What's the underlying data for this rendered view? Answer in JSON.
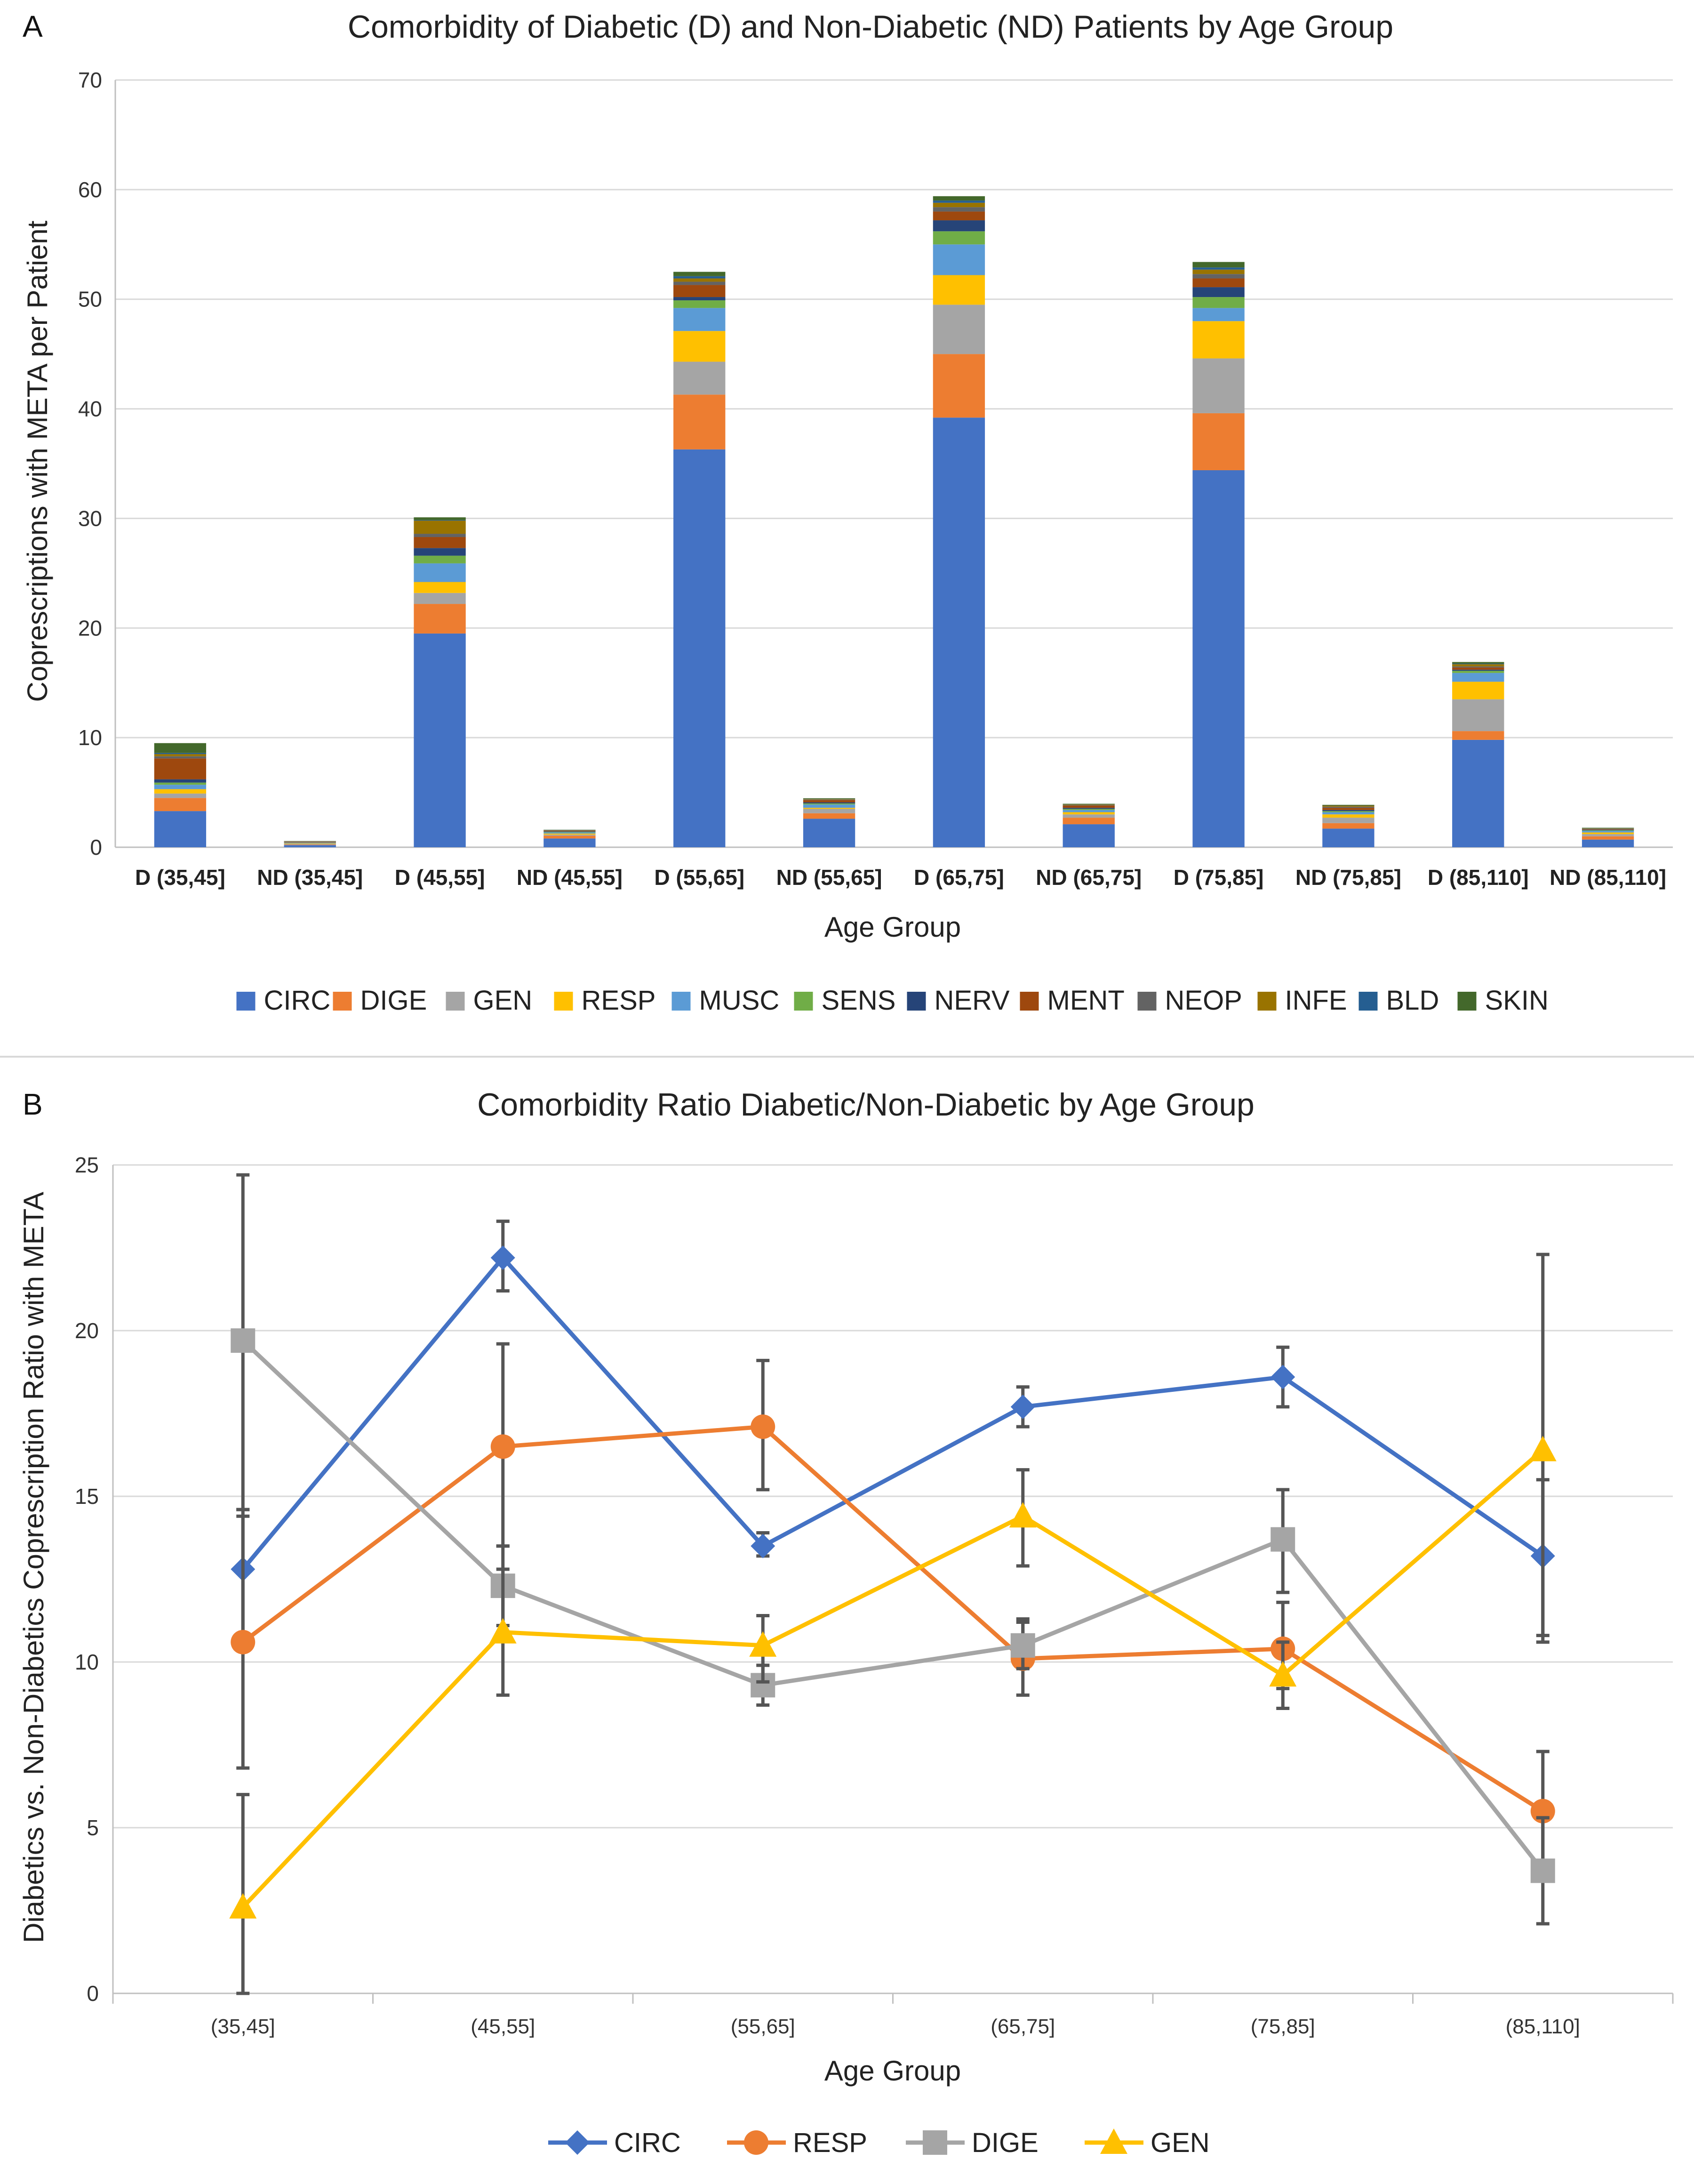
{
  "chart_data": [
    {
      "panel": "A",
      "type": "bar",
      "stacked": true,
      "title": "Comorbidity of Diabetic (D) and Non-Diabetic (ND) Patients by Age Group",
      "xlabel": "Age Group",
      "ylabel": "Coprescriptions  with META per Patient",
      "ylim": [
        0,
        70
      ],
      "yticks": [
        0,
        10,
        20,
        30,
        40,
        50,
        60,
        70
      ],
      "grid": true,
      "legend_position": "bottom",
      "categories": [
        "D (35,45]",
        "ND (35,45]",
        "D (45,55]",
        "ND (45,55]",
        "D (55,65]",
        "ND (55,65]",
        "D (65,75]",
        "ND (65,75]",
        "D (75,85]",
        "ND (75,85]",
        "D (85,110]",
        "ND (85,110]"
      ],
      "series": [
        {
          "name": "CIRC",
          "color": "#4472C4",
          "values": [
            3.3,
            0.2,
            19.5,
            0.8,
            36.3,
            2.6,
            39.2,
            2.1,
            34.4,
            1.7,
            9.8,
            0.7
          ]
        },
        {
          "name": "DIGE",
          "color": "#ED7D31",
          "values": [
            1.2,
            0.05,
            2.7,
            0.25,
            5.0,
            0.5,
            5.8,
            0.6,
            5.2,
            0.5,
            0.8,
            0.3
          ]
        },
        {
          "name": "GEN",
          "color": "#A5A5A5",
          "values": [
            0.4,
            0.05,
            1.0,
            0.1,
            3.0,
            0.4,
            4.5,
            0.3,
            5.0,
            0.5,
            2.9,
            0.2
          ]
        },
        {
          "name": "RESP",
          "color": "#FFC000",
          "values": [
            0.4,
            0.05,
            1.0,
            0.1,
            2.8,
            0.1,
            2.7,
            0.2,
            3.4,
            0.3,
            1.6,
            0.15
          ]
        },
        {
          "name": "MUSC",
          "color": "#5B9BD5",
          "values": [
            0.4,
            0.05,
            1.7,
            0.1,
            2.1,
            0.3,
            2.8,
            0.2,
            1.2,
            0.2,
            0.8,
            0.15
          ]
        },
        {
          "name": "SENS",
          "color": "#70AD47",
          "values": [
            0.2,
            0.02,
            0.7,
            0.05,
            0.7,
            0.1,
            1.2,
            0.1,
            1.0,
            0.1,
            0.2,
            0.05
          ]
        },
        {
          "name": "NERV",
          "color": "#264478",
          "values": [
            0.3,
            0.02,
            0.7,
            0.05,
            0.3,
            0.1,
            1.0,
            0.1,
            0.9,
            0.1,
            0.1,
            0.05
          ]
        },
        {
          "name": "MENT",
          "color": "#9E480E",
          "values": [
            1.9,
            0.05,
            1.0,
            0.05,
            1.1,
            0.2,
            0.8,
            0.2,
            0.8,
            0.2,
            0.2,
            0.05
          ]
        },
        {
          "name": "NEOP",
          "color": "#636363",
          "values": [
            0.2,
            0.02,
            0.3,
            0.03,
            0.3,
            0.05,
            0.4,
            0.05,
            0.4,
            0.1,
            0.1,
            0.03
          ]
        },
        {
          "name": "INFE",
          "color": "#997300",
          "values": [
            0.2,
            0.02,
            1.2,
            0.03,
            0.3,
            0.05,
            0.4,
            0.05,
            0.4,
            0.1,
            0.2,
            0.03
          ]
        },
        {
          "name": "BLD",
          "color": "#255E91",
          "values": [
            0.1,
            0.02,
            0.05,
            0.02,
            0.2,
            0.02,
            0.2,
            0.02,
            0.2,
            0.02,
            0.05,
            0.02
          ]
        },
        {
          "name": "SKIN",
          "color": "#43682B",
          "values": [
            0.9,
            0.02,
            0.25,
            0.02,
            0.4,
            0.05,
            0.4,
            0.05,
            0.5,
            0.05,
            0.15,
            0.05
          ]
        }
      ]
    },
    {
      "panel": "B",
      "type": "line",
      "title": "Comorbidity Ratio Diabetic/Non-Diabetic by Age Group",
      "xlabel": "Age Group",
      "ylabel": "Diabetics vs. Non-Diabetics Coprescription Ratio with META",
      "ylim": [
        0,
        25
      ],
      "yticks": [
        0,
        5,
        10,
        15,
        20,
        25
      ],
      "grid": true,
      "legend_position": "bottom",
      "categories": [
        "(35,45]",
        "(45,55]",
        "(55,65]",
        "(65,75]",
        "(75,85]",
        "(85,110]"
      ],
      "series": [
        {
          "name": "CIRC",
          "color": "#4472C4",
          "marker": "diamond",
          "values": [
            12.8,
            22.2,
            13.5,
            17.7,
            18.6,
            13.2
          ],
          "err_low": [
            10.8,
            21.2,
            13.2,
            17.1,
            17.7,
            10.8
          ],
          "err_high": [
            14.6,
            23.3,
            13.9,
            18.3,
            19.5,
            15.5
          ]
        },
        {
          "name": "RESP",
          "color": "#ED7D31",
          "marker": "circle",
          "values": [
            10.6,
            16.5,
            17.1,
            10.1,
            10.4,
            5.5
          ],
          "err_low": [
            6.8,
            13.5,
            15.2,
            9.0,
            9.2,
            3.7
          ],
          "err_high": [
            14.4,
            19.6,
            19.1,
            11.2,
            11.8,
            7.3
          ]
        },
        {
          "name": "DIGE",
          "color": "#A5A5A5",
          "marker": "square",
          "values": [
            19.7,
            12.3,
            9.3,
            10.5,
            13.7,
            3.7
          ],
          "err_low": [
            14.6,
            11.1,
            8.7,
            9.8,
            12.1,
            2.1
          ],
          "err_high": [
            24.7,
            13.5,
            9.9,
            11.3,
            15.2,
            5.3
          ]
        },
        {
          "name": "GEN",
          "color": "#FFC000",
          "marker": "triangle",
          "values": [
            2.6,
            10.9,
            10.5,
            14.4,
            9.6,
            16.4
          ],
          "err_low": [
            0.0,
            9.0,
            9.4,
            12.9,
            8.6,
            10.6
          ],
          "err_high": [
            6.0,
            12.8,
            11.4,
            15.8,
            10.6,
            22.3
          ]
        }
      ]
    }
  ]
}
